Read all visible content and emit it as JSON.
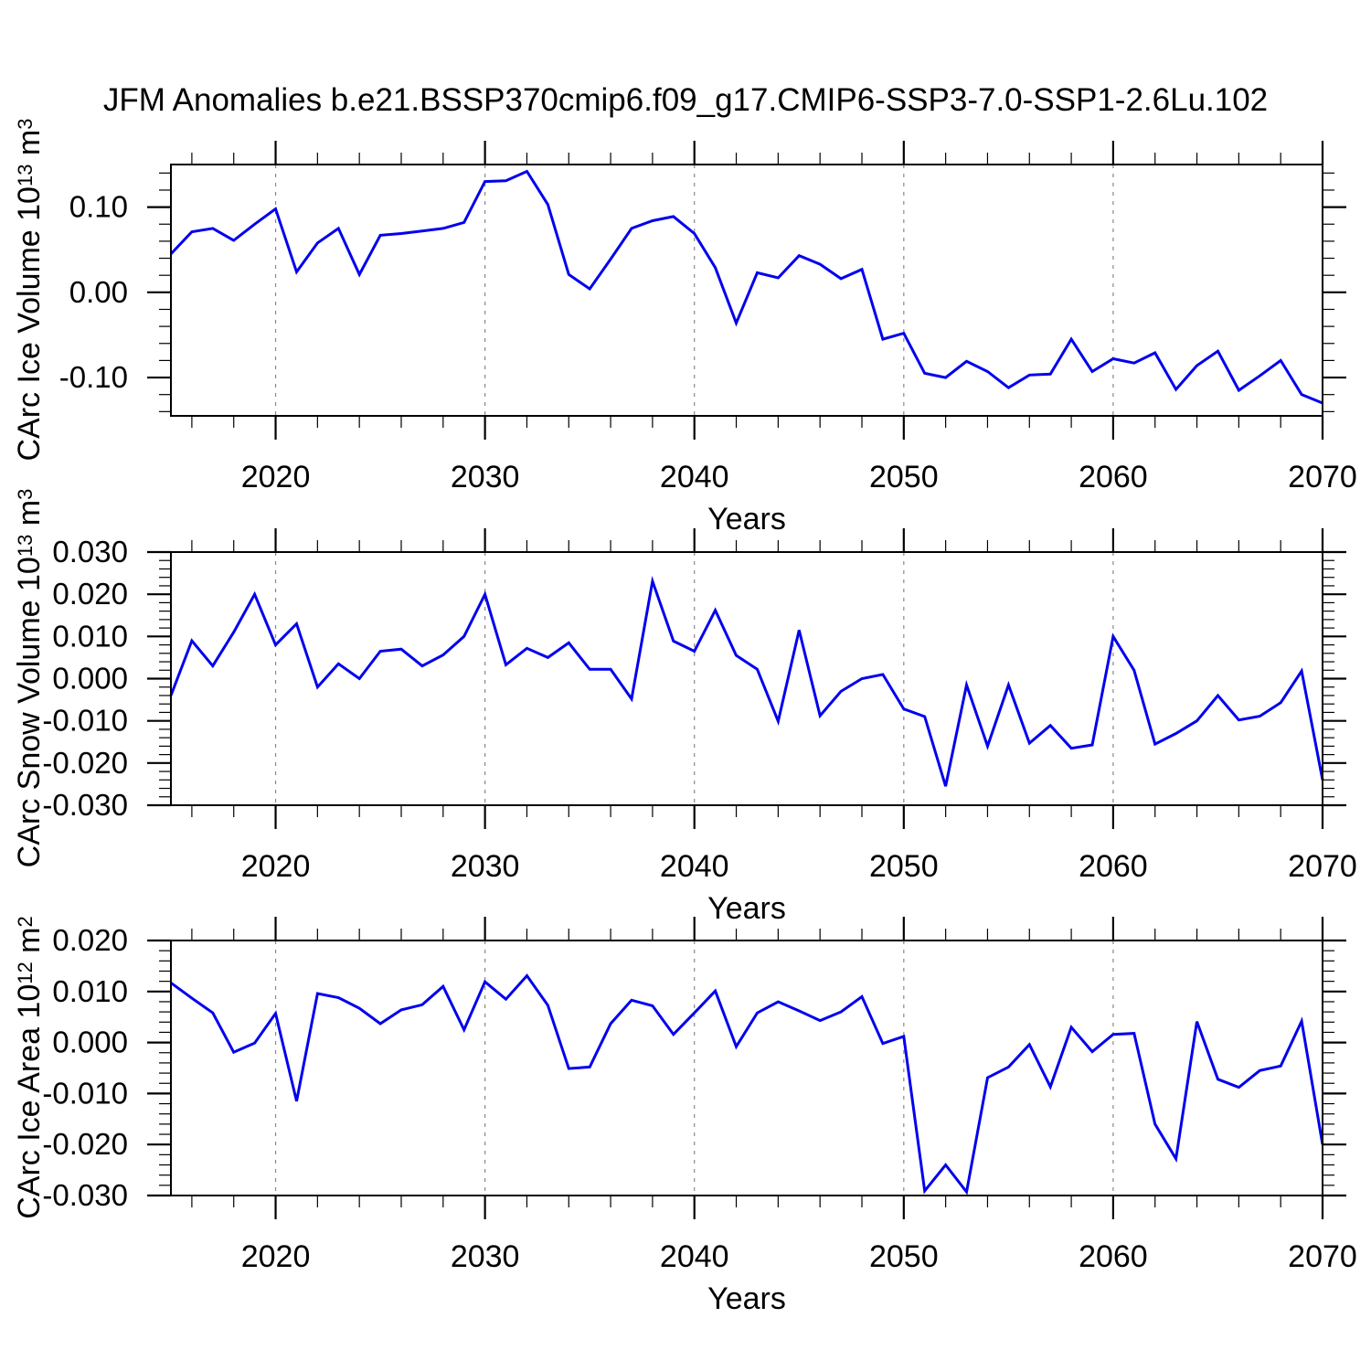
{
  "title": "JFM Anomalies b.e21.BSSP370cmip6.f09_g17.CMIP6-SSP3-7.0-SSP1-2.6Lu.102",
  "xlabel": "Years",
  "colors": {
    "line": "#0000ee",
    "grid": "#888888",
    "frame": "#000000"
  },
  "chart_data": [
    {
      "type": "line",
      "name": "carc-ice-volume",
      "ylabel": {
        "text": "CArc Ice Volume 10",
        "exp": "13",
        "unit": " m",
        "unit_exp": "3"
      },
      "ylim": [
        -0.145,
        0.15
      ],
      "ymajor": [
        0.1,
        0.0,
        -0.1
      ],
      "ytick_labels": [
        "0.10",
        "0.00",
        "-0.10"
      ],
      "ymajor_step": 0.1,
      "yminor_step": 0.02,
      "values": [
        0.045,
        0.071,
        0.075,
        0.061,
        0.08,
        0.098,
        0.024,
        0.058,
        0.075,
        0.021,
        0.067,
        0.069,
        0.072,
        0.075,
        0.082,
        0.13,
        0.131,
        0.142,
        0.103,
        0.021,
        0.004,
        0.039,
        0.075,
        0.084,
        0.089,
        0.069,
        0.029,
        -0.036,
        0.023,
        0.017,
        0.043,
        0.033,
        0.016,
        0.027,
        -0.055,
        -0.048,
        -0.095,
        -0.1,
        -0.081,
        -0.093,
        -0.112,
        -0.097,
        -0.096,
        -0.055,
        -0.093,
        -0.078,
        -0.083,
        -0.071,
        -0.114,
        -0.086,
        -0.069,
        -0.115,
        -0.098,
        -0.08,
        -0.12,
        -0.13
      ]
    },
    {
      "type": "line",
      "name": "carc-snow-volume",
      "ylabel": {
        "text": "CArc Snow Volume 10",
        "exp": "13",
        "unit": " m",
        "unit_exp": "3"
      },
      "ylim": [
        -0.03,
        0.03
      ],
      "ymajor": [
        0.03,
        0.02,
        0.01,
        0.0,
        -0.01,
        -0.02,
        -0.03
      ],
      "ytick_labels": [
        "0.030",
        "0.020",
        "0.010",
        "0.000",
        "-0.010",
        "-0.020",
        "-0.030"
      ],
      "ymajor_step": 0.01,
      "yminor_step": 0.002,
      "values": [
        -0.004,
        0.009,
        0.003,
        0.011,
        0.02,
        0.008,
        0.013,
        -0.002,
        0.0035,
        0.0,
        0.0065,
        0.007,
        0.003,
        0.0056,
        0.01,
        0.02,
        0.0033,
        0.0072,
        0.005,
        0.0085,
        0.0022,
        0.0022,
        -0.0048,
        0.0231,
        0.0089,
        0.0065,
        0.0162,
        0.0055,
        0.0022,
        -0.0101,
        0.0115,
        -0.0088,
        -0.003,
        0.0,
        0.001,
        -0.0072,
        -0.009,
        -0.0255,
        -0.0015,
        -0.016,
        -0.0015,
        -0.0153,
        -0.0111,
        -0.0165,
        -0.0157,
        0.01,
        0.002,
        -0.0155,
        -0.013,
        -0.01,
        -0.004,
        -0.0098,
        -0.0089,
        -0.0057,
        0.0018,
        -0.024
      ]
    },
    {
      "type": "line",
      "name": "carc-ice-area",
      "ylabel": {
        "text": "CArc Ice Area 10",
        "exp": "12",
        "unit": " m",
        "unit_exp": "2"
      },
      "ylim": [
        -0.03,
        0.02
      ],
      "ymajor": [
        0.02,
        0.01,
        0.0,
        -0.01,
        -0.02,
        -0.03
      ],
      "ytick_labels": [
        "0.020",
        "0.010",
        "0.000",
        "-0.010",
        "-0.020",
        "-0.030"
      ],
      "ymajor_step": 0.01,
      "yminor_step": 0.002,
      "values": [
        0.0117,
        0.0087,
        0.0058,
        -0.0019,
        -0.0001,
        0.0057,
        -0.0115,
        0.0096,
        0.0088,
        0.0067,
        0.0037,
        0.0064,
        0.0074,
        0.011,
        0.0025,
        0.0119,
        0.0085,
        0.0131,
        0.0073,
        -0.0051,
        -0.0048,
        0.0037,
        0.0083,
        0.0072,
        0.0016,
        0.0058,
        0.0101,
        -0.0008,
        0.0058,
        0.008,
        0.0062,
        0.0043,
        0.006,
        0.009,
        -0.0002,
        0.0012,
        -0.0291,
        -0.024,
        -0.0293,
        -0.0069,
        -0.0048,
        -0.0004,
        -0.0087,
        0.003,
        -0.0018,
        0.0016,
        0.0018,
        -0.016,
        -0.0228,
        0.0041,
        -0.0072,
        -0.0088,
        -0.0055,
        -0.0046,
        0.0042,
        -0.02
      ]
    }
  ],
  "x_axis": {
    "start_year": 2015,
    "end_year": 2070,
    "major_ticks": [
      2020,
      2030,
      2040,
      2050,
      2060,
      2070
    ],
    "tick_labels": [
      "2020",
      "2030",
      "2040",
      "2050",
      "2060",
      "2070"
    ],
    "minor_step": 2,
    "grid_years": [
      2020,
      2030,
      2040,
      2050,
      2060
    ]
  }
}
